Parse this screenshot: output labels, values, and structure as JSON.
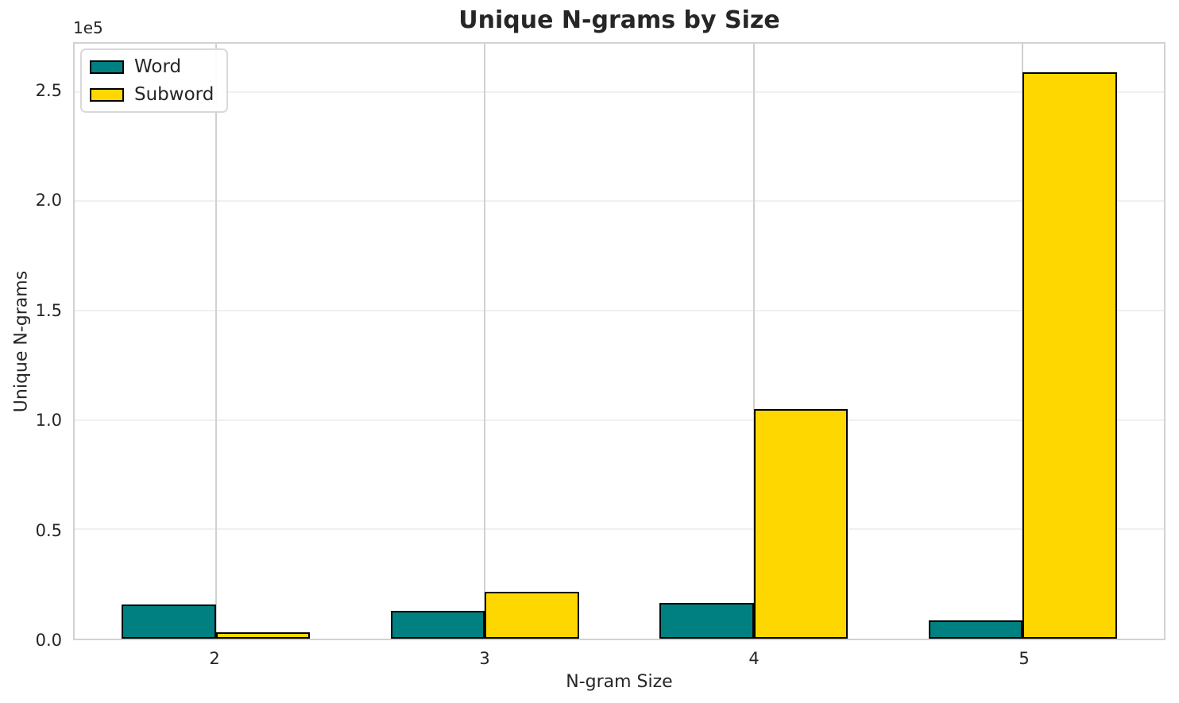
{
  "figure": {
    "title": "Unique N-grams by Size",
    "xlabel": "N-gram Size",
    "ylabel": "Unique N-grams",
    "offset_text": "1e5"
  },
  "legend": {
    "position": "upper left",
    "items": [
      {
        "label": "Word",
        "color": "#008080"
      },
      {
        "label": "Subword",
        "color": "#FFD700"
      }
    ]
  },
  "chart_data": {
    "type": "bar",
    "title": "Unique N-grams by Size",
    "xlabel": "N-gram Size",
    "ylabel": "Unique N-grams",
    "categories": [
      "2",
      "3",
      "4",
      "5"
    ],
    "x_positions": [
      2,
      3,
      4,
      5
    ],
    "series": [
      {
        "name": "Word",
        "color": "#008080",
        "values": [
          15500,
          12700,
          16200,
          8300
        ]
      },
      {
        "name": "Subword",
        "color": "#FFD700",
        "values": [
          3000,
          21300,
          105000,
          259000
        ]
      }
    ],
    "bar_width": 0.35,
    "bar_edge_color": "#000000",
    "xlim": [
      1.475,
      5.525
    ],
    "ylim": [
      0,
      272000
    ],
    "yticks": [
      0.0,
      0.5,
      1.0,
      1.5,
      2.0,
      2.5
    ],
    "ytick_labels": [
      "0.0",
      "0.5",
      "1.0",
      "1.5",
      "2.0",
      "2.5"
    ],
    "y_multiplier": 100000,
    "offset_text": "1e5",
    "grid": true,
    "grid_x_color": "#d0d0d0",
    "grid_y_color": "#f0f0f0",
    "frame_color": "#d2d2d2",
    "text_color": "#262626",
    "legend_position": "upper left"
  }
}
